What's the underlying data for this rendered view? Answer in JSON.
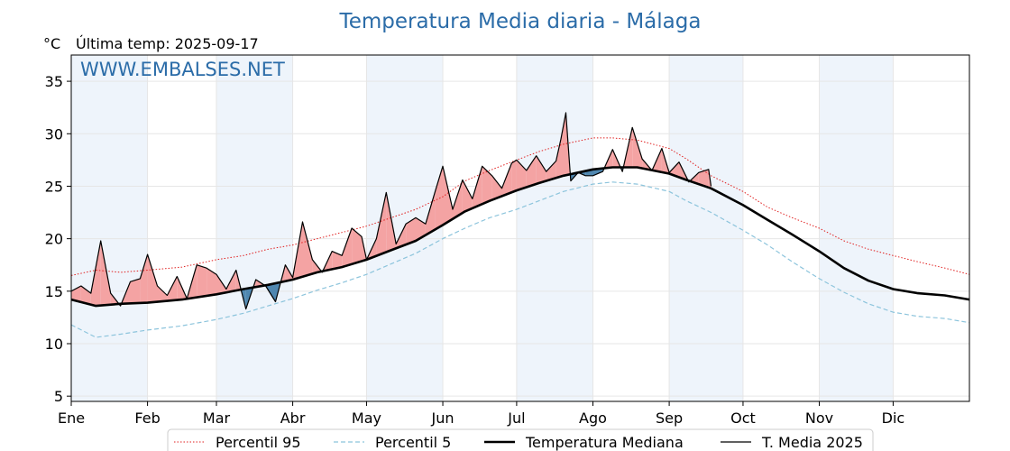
{
  "chart_data": {
    "type": "line",
    "title": "Temperatura Media diaria - Málaga",
    "unit_label": "°C",
    "subtitle": "Última temp: 2025-09-17",
    "watermark": "WWW.EMBALSES.NET",
    "xlabel": "",
    "ylabel": "",
    "ylim": [
      4.5,
      37.5
    ],
    "xlim": [
      0,
      365
    ],
    "yticks": [
      5,
      10,
      15,
      20,
      25,
      30,
      35
    ],
    "months": [
      {
        "label": "Ene",
        "day": 0
      },
      {
        "label": "Feb",
        "day": 31
      },
      {
        "label": "Mar",
        "day": 59
      },
      {
        "label": "Abr",
        "day": 90
      },
      {
        "label": "May",
        "day": 120
      },
      {
        "label": "Jun",
        "day": 151
      },
      {
        "label": "Jul",
        "day": 181
      },
      {
        "label": "Ago",
        "day": 212
      },
      {
        "label": "Sep",
        "day": 243
      },
      {
        "label": "Oct",
        "day": 273
      },
      {
        "label": "Nov",
        "day": 304
      },
      {
        "label": "Dic",
        "day": 334
      }
    ],
    "shaded_months": [
      "Ene",
      "Mar",
      "May",
      "Jul",
      "Sep",
      "Nov"
    ],
    "grid": true,
    "legend_position": "bottom",
    "series": [
      {
        "name": "Percentil 95",
        "color": "#e02020",
        "style": "dotted",
        "x": [
          0,
          10,
          20,
          31,
          45,
          59,
          70,
          80,
          90,
          100,
          110,
          120,
          130,
          140,
          151,
          160,
          170,
          181,
          190,
          200,
          212,
          220,
          230,
          243,
          250,
          260,
          273,
          283,
          293,
          304,
          314,
          324,
          334,
          344,
          355,
          365
        ],
        "values": [
          16.5,
          17.0,
          16.8,
          17.0,
          17.3,
          18.0,
          18.4,
          19.0,
          19.4,
          20.0,
          20.6,
          21.2,
          22.0,
          22.8,
          24.0,
          25.5,
          26.5,
          27.5,
          28.3,
          29.0,
          29.6,
          29.6,
          29.4,
          28.6,
          27.6,
          26.0,
          24.5,
          23.0,
          22.0,
          21.0,
          19.8,
          19.0,
          18.4,
          17.8,
          17.2,
          16.6
        ]
      },
      {
        "name": "Percentil 5",
        "color": "#8cc4dc",
        "style": "dashed",
        "x": [
          0,
          10,
          20,
          31,
          45,
          59,
          70,
          80,
          90,
          100,
          110,
          120,
          130,
          140,
          151,
          160,
          170,
          181,
          190,
          200,
          212,
          220,
          230,
          243,
          250,
          260,
          273,
          283,
          293,
          304,
          314,
          324,
          334,
          344,
          355,
          365
        ],
        "values": [
          11.8,
          10.6,
          10.9,
          11.3,
          11.7,
          12.3,
          12.9,
          13.6,
          14.3,
          15.1,
          15.8,
          16.6,
          17.6,
          18.6,
          20.0,
          21.0,
          22.0,
          22.8,
          23.6,
          24.5,
          25.2,
          25.4,
          25.2,
          24.5,
          23.6,
          22.5,
          20.8,
          19.4,
          17.8,
          16.2,
          14.9,
          13.8,
          13.0,
          12.6,
          12.4,
          12.0
        ]
      },
      {
        "name": "Temperatura Mediana",
        "color": "#000000",
        "style": "thick",
        "x": [
          0,
          10,
          20,
          31,
          45,
          59,
          70,
          80,
          90,
          100,
          110,
          120,
          130,
          140,
          151,
          160,
          170,
          181,
          190,
          200,
          212,
          220,
          230,
          243,
          250,
          260,
          273,
          283,
          293,
          304,
          314,
          324,
          334,
          344,
          355,
          365
        ],
        "values": [
          14.2,
          13.6,
          13.8,
          13.9,
          14.2,
          14.7,
          15.2,
          15.6,
          16.1,
          16.8,
          17.3,
          18.0,
          18.9,
          19.8,
          21.3,
          22.6,
          23.6,
          24.6,
          25.3,
          26.0,
          26.6,
          26.8,
          26.8,
          26.2,
          25.6,
          24.8,
          23.2,
          21.8,
          20.4,
          18.8,
          17.2,
          16.0,
          15.2,
          14.8,
          14.6,
          14.2
        ]
      },
      {
        "name": "T. Media 2025",
        "color": "#000000",
        "style": "solid",
        "x": [
          0,
          4,
          8,
          12,
          16,
          20,
          24,
          28,
          31,
          35,
          39,
          43,
          47,
          51,
          55,
          59,
          63,
          67,
          71,
          75,
          79,
          83,
          87,
          90,
          94,
          98,
          102,
          106,
          110,
          114,
          118,
          120,
          124,
          128,
          132,
          136,
          140,
          144,
          148,
          151,
          155,
          159,
          163,
          167,
          171,
          175,
          179,
          181,
          185,
          189,
          193,
          197,
          199,
          201,
          203,
          206,
          209,
          212,
          216,
          220,
          224,
          228,
          232,
          236,
          240,
          243,
          247,
          251,
          255,
          259,
          260
        ],
        "values": [
          15.0,
          15.5,
          14.8,
          19.8,
          14.8,
          13.6,
          15.9,
          16.2,
          18.5,
          15.5,
          14.6,
          16.4,
          14.3,
          17.5,
          17.2,
          16.6,
          15.2,
          17.0,
          13.3,
          16.1,
          15.5,
          14.0,
          17.5,
          16.3,
          21.6,
          18.0,
          16.8,
          18.8,
          18.4,
          21.0,
          20.2,
          18.0,
          20.0,
          24.4,
          19.5,
          21.4,
          22.0,
          21.4,
          24.6,
          26.9,
          22.8,
          25.6,
          23.8,
          26.9,
          26.0,
          24.8,
          27.2,
          27.5,
          26.5,
          27.9,
          26.4,
          27.4,
          29.5,
          32.0,
          25.5,
          26.3,
          26.0,
          26.0,
          26.4,
          28.5,
          26.4,
          30.6,
          27.6,
          26.5,
          28.6,
          26.3,
          27.3,
          25.4,
          26.3,
          26.6,
          25.0
        ]
      }
    ],
    "legend": [
      {
        "label": "Percentil 95",
        "color": "#e02020",
        "style": "dotted"
      },
      {
        "label": "Percentil 5",
        "color": "#8cc4dc",
        "style": "dashed"
      },
      {
        "label": "Temperatura Mediana",
        "color": "#000000",
        "style": "thick"
      },
      {
        "label": "T. Media 2025",
        "color": "#000000",
        "style": "solid"
      }
    ],
    "fill_colors": {
      "above": "#f4a3a3",
      "below": "#4f87b0"
    }
  }
}
